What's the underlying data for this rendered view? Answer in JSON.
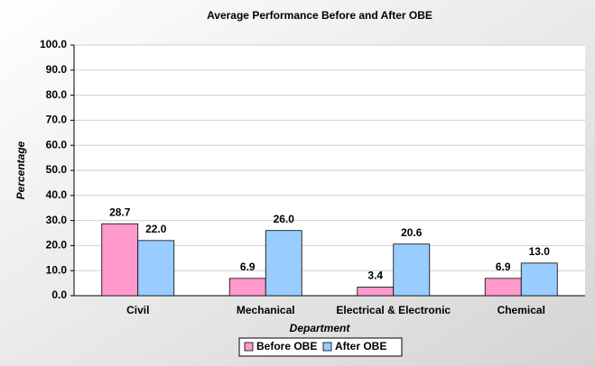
{
  "chart_data": {
    "type": "bar",
    "title": "Average Performance Before and After OBE",
    "x_label": "Department",
    "y_label": "Percentage",
    "categories": [
      "Civil",
      "Mechanical",
      "Electrical & Electronic",
      "Chemical"
    ],
    "series": [
      {
        "name": "Before OBE",
        "color": "#ff99cc",
        "values": [
          28.7,
          6.9,
          3.4,
          6.9
        ],
        "value_labels": [
          "28.7",
          "6.9",
          "3.4",
          "6.9"
        ]
      },
      {
        "name": "After OBE",
        "color": "#99ccff",
        "values": [
          22.0,
          26.0,
          20.6,
          13.0
        ],
        "value_labels": [
          "22.0",
          "26.0",
          "20.6",
          "13.0"
        ]
      }
    ],
    "ylim": [
      0,
      100
    ],
    "yticks": [
      {
        "value": 0,
        "label": "0.0"
      },
      {
        "value": 10,
        "label": "10.0"
      },
      {
        "value": 20,
        "label": "20.0"
      },
      {
        "value": 30,
        "label": "30.0"
      },
      {
        "value": 40,
        "label": "40.0"
      },
      {
        "value": 50,
        "label": "50.0"
      },
      {
        "value": 60,
        "label": "60.0"
      },
      {
        "value": 70,
        "label": "70.0"
      },
      {
        "value": 80,
        "label": "80.0"
      },
      {
        "value": 90,
        "label": "90.0"
      },
      {
        "value": 100,
        "label": "100.0"
      }
    ],
    "grid": true,
    "legend": "bottom"
  }
}
